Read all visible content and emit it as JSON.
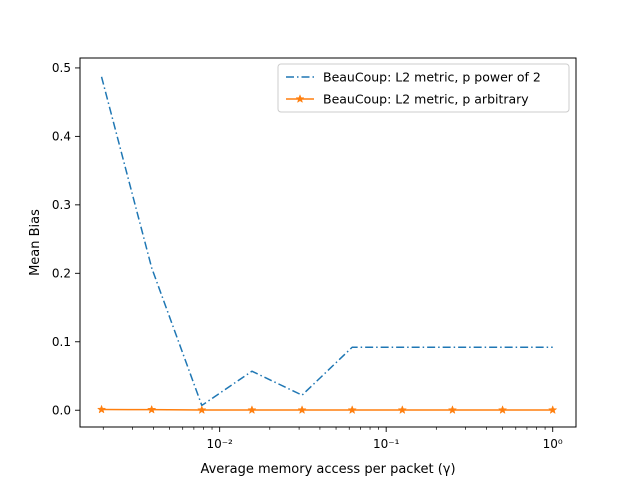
{
  "chart_data": {
    "type": "line",
    "title": "",
    "xlabel": "Average memory access per packet (γ)",
    "ylabel": "Mean Bias",
    "xscale": "log",
    "xlim": [
      0.00145,
      1.38
    ],
    "ylim": [
      -0.0245,
      0.5145
    ],
    "xticks": [
      {
        "value": 0.01,
        "label": "10⁻²"
      },
      {
        "value": 0.1,
        "label": "10⁻¹"
      },
      {
        "value": 1,
        "label": "10⁰"
      }
    ],
    "yticks": [
      {
        "value": 0.0,
        "label": "0.0"
      },
      {
        "value": 0.1,
        "label": "0.1"
      },
      {
        "value": 0.2,
        "label": "0.2"
      },
      {
        "value": 0.3,
        "label": "0.3"
      },
      {
        "value": 0.4,
        "label": "0.4"
      },
      {
        "value": 0.5,
        "label": "0.5"
      }
    ],
    "grid": false,
    "legend_position": "top-right",
    "x": [
      0.001953125,
      0.00390625,
      0.0078125,
      0.015625,
      0.03125,
      0.0625,
      0.125,
      0.25,
      0.5,
      1.0
    ],
    "series": [
      {
        "name": "BeauCoup: L2 metric, p power of 2",
        "color": "#1f77b4",
        "linestyle": "dashdot",
        "marker": "none",
        "values": [
          0.487,
          0.208,
          0.007,
          0.057,
          0.022,
          0.092,
          0.092,
          0.092,
          0.092,
          0.092
        ]
      },
      {
        "name": "BeauCoup: L2 metric, p arbitrary",
        "color": "#ff7f0e",
        "linestyle": "solid",
        "marker": "star",
        "values": [
          0.001,
          0.0008,
          0.0003,
          0.0003,
          0.0003,
          0.0003,
          0.0003,
          0.0003,
          0.0003,
          0.0003
        ]
      }
    ]
  }
}
